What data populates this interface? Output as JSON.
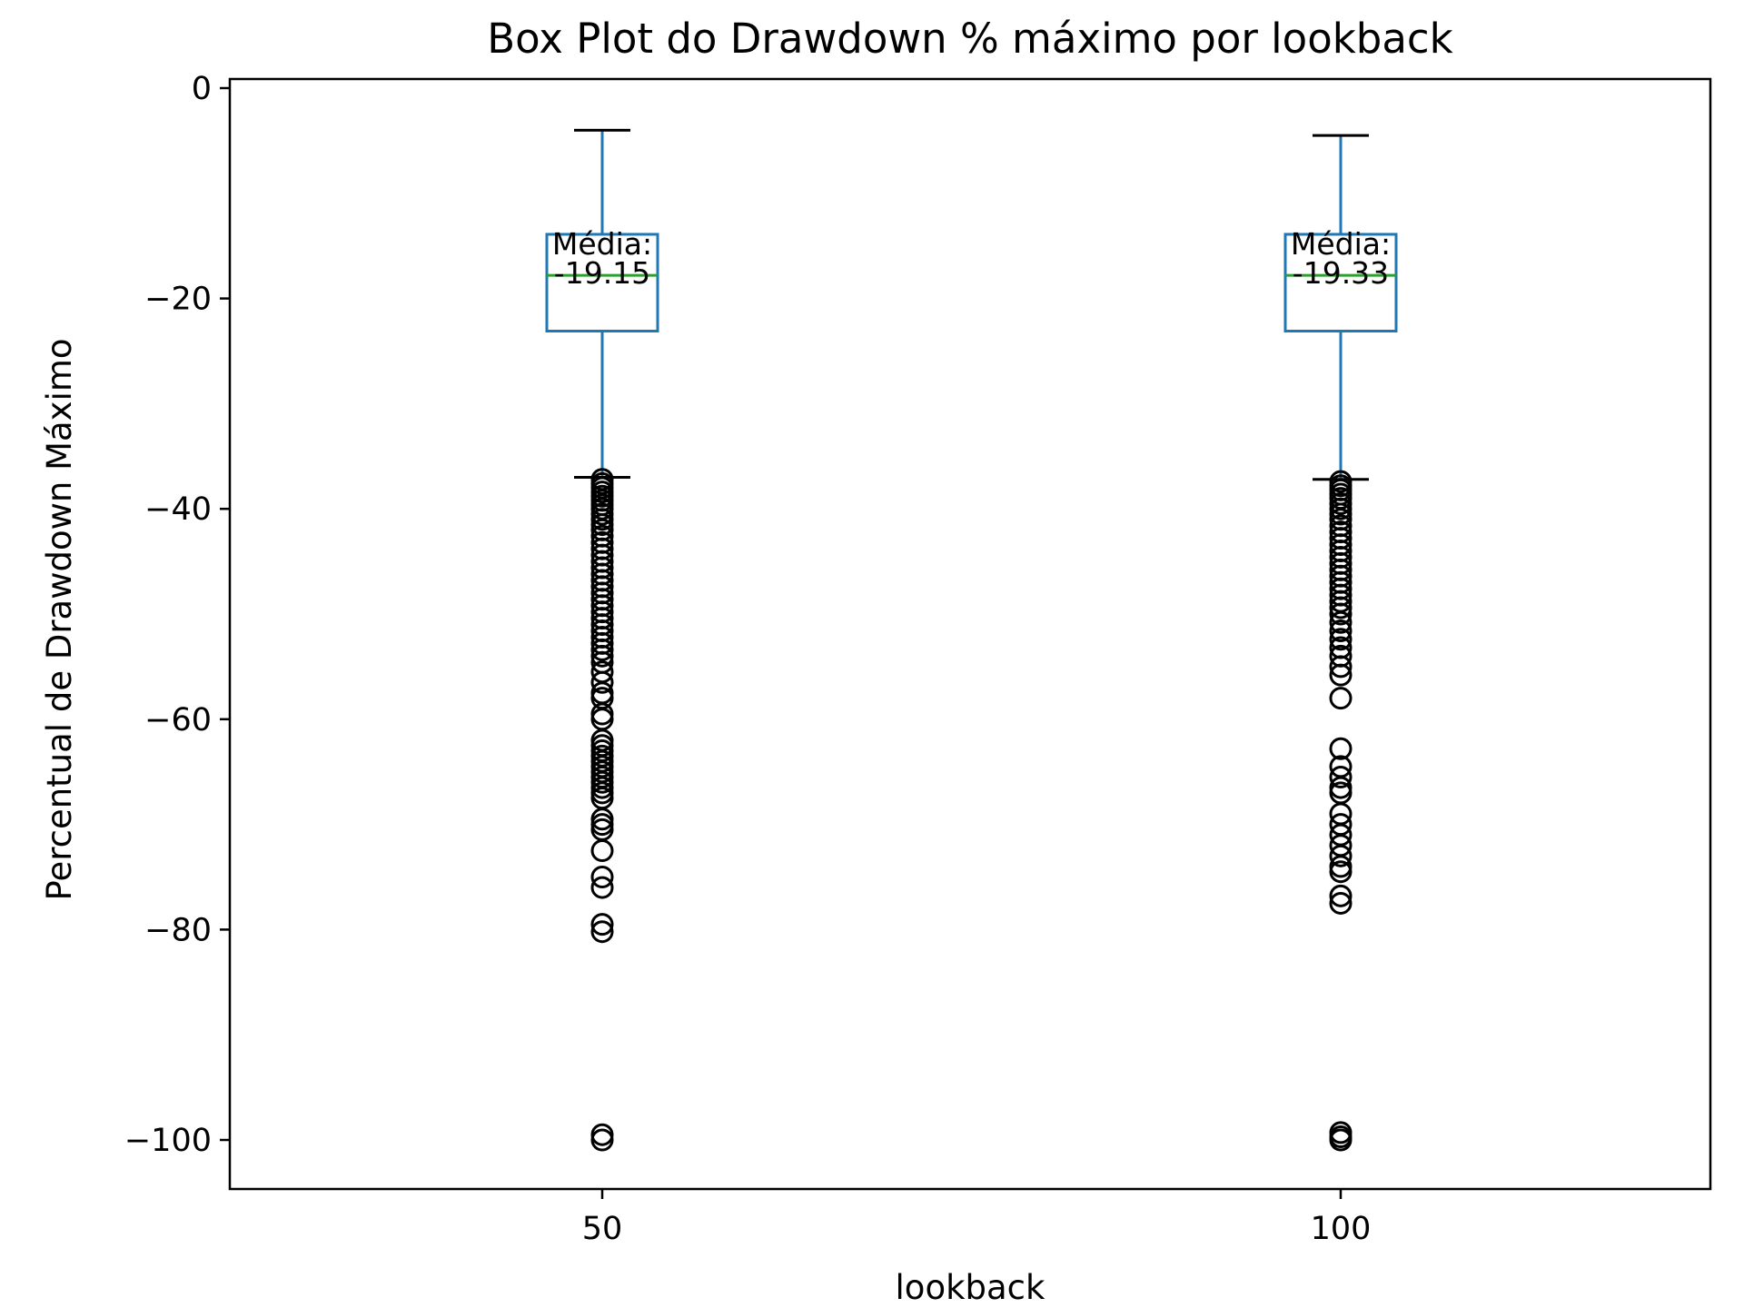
{
  "chart_data": {
    "type": "box",
    "title": "Box Plot do Drawdown % máximo por lookback",
    "xlabel": "lookback",
    "ylabel": "Percentual de Drawdown Máximo",
    "ylim": [
      -105,
      1
    ],
    "yticks": [
      0,
      -20,
      -40,
      -60,
      -80,
      -100
    ],
    "ytick_labels": [
      "0",
      "−20",
      "−40",
      "−60",
      "−80",
      "−100"
    ],
    "categories": [
      "50",
      "100"
    ],
    "grid": false,
    "legend": "none",
    "colors": {
      "box": "#1f77b4",
      "median": "#2ca02c",
      "cap": "#000000",
      "flier": "#000000"
    },
    "boxes": [
      {
        "category": "50",
        "whisker_high": -4.0,
        "q3": -13.9,
        "median": -17.8,
        "q1": -23.1,
        "whisker_low": -37.0,
        "annotation": [
          "Média:",
          "-19.15"
        ],
        "outliers": [
          -37.2,
          -37.6,
          -38.0,
          -38.4,
          -38.8,
          -39.2,
          -39.6,
          -40.0,
          -40.5,
          -41.0,
          -41.5,
          -42.0,
          -42.6,
          -43.2,
          -43.8,
          -44.4,
          -45.0,
          -45.6,
          -46.2,
          -46.8,
          -47.4,
          -48.0,
          -48.6,
          -49.2,
          -49.8,
          -50.4,
          -51.0,
          -51.6,
          -52.2,
          -52.8,
          -53.4,
          -54.0,
          -54.6,
          -55.5,
          -56.5,
          -57.5,
          -58.0,
          -59.5,
          -60.0,
          -62.0,
          -62.5,
          -63.0,
          -63.5,
          -64.0,
          -64.5,
          -65.0,
          -65.5,
          -66.0,
          -66.5,
          -67.0,
          -67.5,
          -69.5,
          -70.0,
          -70.5,
          -72.5,
          -75.0,
          -76.0,
          -79.5,
          -80.2,
          -99.5,
          -100.0
        ]
      },
      {
        "category": "100",
        "whisker_high": -4.5,
        "q3": -13.9,
        "median": -17.8,
        "q1": -23.1,
        "whisker_low": -37.2,
        "annotation": [
          "Média:",
          "-19.33"
        ],
        "outliers": [
          -37.4,
          -37.8,
          -38.2,
          -38.6,
          -39.0,
          -39.5,
          -40.0,
          -40.5,
          -41.0,
          -41.6,
          -42.2,
          -42.8,
          -43.4,
          -44.0,
          -44.6,
          -45.2,
          -45.8,
          -46.4,
          -47.0,
          -47.6,
          -48.2,
          -48.8,
          -49.4,
          -50.0,
          -50.8,
          -51.6,
          -52.4,
          -53.2,
          -54.0,
          -55.0,
          -55.8,
          -58.0,
          -62.8,
          -64.5,
          -65.5,
          -66.5,
          -67.0,
          -69.0,
          -70.0,
          -71.0,
          -72.0,
          -73.0,
          -74.0,
          -74.5,
          -76.8,
          -77.5,
          -99.3,
          -99.7,
          -100.0
        ]
      }
    ]
  }
}
